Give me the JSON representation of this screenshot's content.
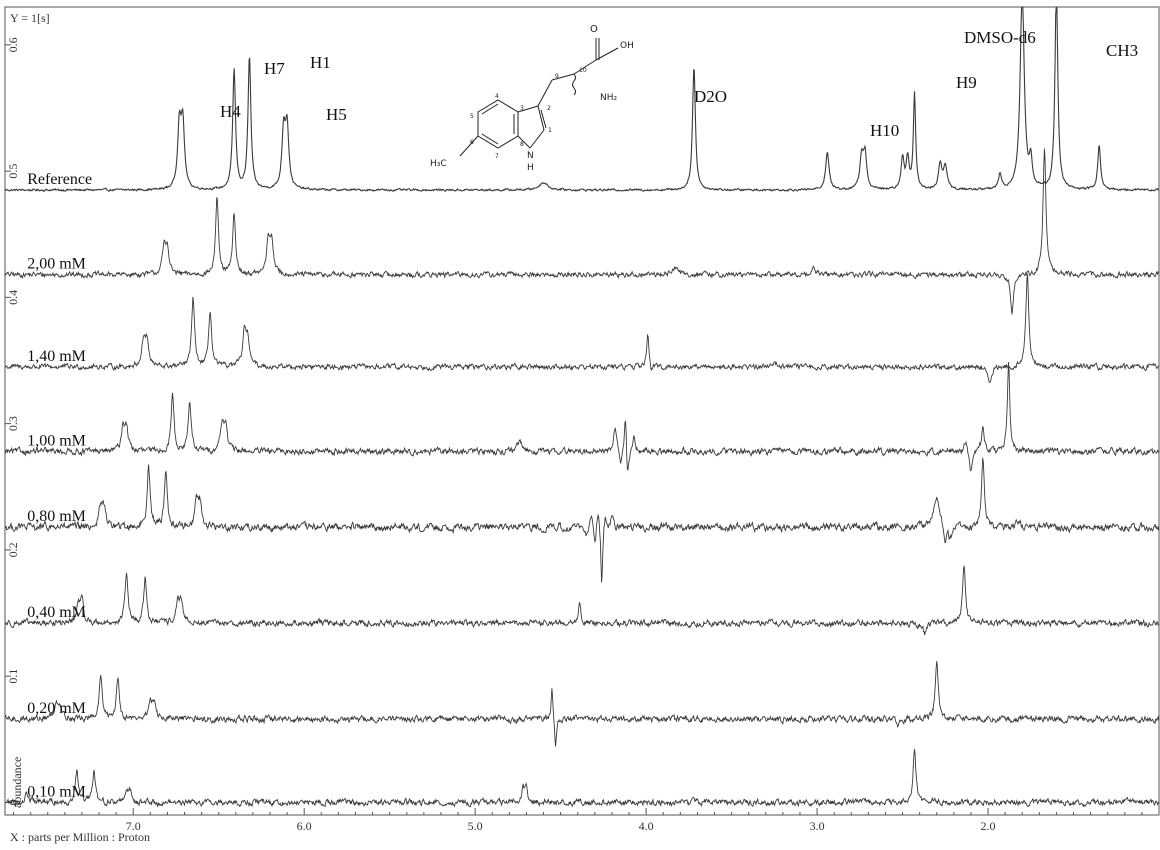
{
  "header": {
    "y_scale_label": "Y = 1[s]"
  },
  "axes": {
    "xlabel": "X : parts per Million : Proton",
    "ylabel": "abundance"
  },
  "chart_data": {
    "type": "line",
    "title": "",
    "xlabel": "X : parts per Million : Proton",
    "ylabel": "abundance",
    "xlim": [
      7.75,
      1.0
    ],
    "x_reversed": true,
    "ylim": [
      -0.01,
      0.63
    ],
    "xticks": [
      "7.0",
      "6.0",
      "5.0",
      "4.0",
      "3.0",
      "2.0"
    ],
    "yticks": [
      "0",
      "0.1",
      "0.2",
      "0.3",
      "0.4",
      "0.5",
      "0.6"
    ],
    "series": [
      {
        "name": "Reference",
        "baseline": 0.485,
        "noise": 0.0006,
        "peaks": [
          {
            "ppm": 6.73,
            "h": 0.05,
            "w": 0.012
          },
          {
            "ppm": 6.71,
            "h": 0.05,
            "w": 0.012
          },
          {
            "ppm": 6.41,
            "h": 0.095,
            "w": 0.01
          },
          {
            "ppm": 6.32,
            "h": 0.105,
            "w": 0.01
          },
          {
            "ppm": 6.12,
            "h": 0.045,
            "w": 0.012
          },
          {
            "ppm": 6.1,
            "h": 0.048,
            "w": 0.012
          },
          {
            "ppm": 4.6,
            "h": 0.006,
            "w": 0.03
          },
          {
            "ppm": 3.72,
            "h": 0.098,
            "w": 0.01
          },
          {
            "ppm": 2.94,
            "h": 0.03,
            "w": 0.012
          },
          {
            "ppm": 2.74,
            "h": 0.025,
            "w": 0.012
          },
          {
            "ppm": 2.72,
            "h": 0.027,
            "w": 0.012
          },
          {
            "ppm": 2.5,
            "h": 0.025,
            "w": 0.01
          },
          {
            "ppm": 2.47,
            "h": 0.025,
            "w": 0.01
          },
          {
            "ppm": 2.43,
            "h": 0.077,
            "w": 0.008
          },
          {
            "ppm": 2.28,
            "h": 0.02,
            "w": 0.012
          },
          {
            "ppm": 2.25,
            "h": 0.019,
            "w": 0.012
          },
          {
            "ppm": 1.93,
            "h": 0.012,
            "w": 0.01
          },
          {
            "ppm": 1.8,
            "h": 0.16,
            "w": 0.014
          },
          {
            "ppm": 1.75,
            "h": 0.02,
            "w": 0.01
          },
          {
            "ppm": 1.6,
            "h": 0.16,
            "w": 0.01
          },
          {
            "ppm": 1.35,
            "h": 0.035,
            "w": 0.01
          }
        ]
      },
      {
        "name": "2,00 mM",
        "baseline": 0.418,
        "noise": 0.0015,
        "peaks": [
          {
            "ppm": 6.82,
            "h": 0.02,
            "w": 0.012
          },
          {
            "ppm": 6.8,
            "h": 0.02,
            "w": 0.012
          },
          {
            "ppm": 6.51,
            "h": 0.06,
            "w": 0.01
          },
          {
            "ppm": 6.41,
            "h": 0.048,
            "w": 0.01
          },
          {
            "ppm": 6.21,
            "h": 0.025,
            "w": 0.012
          },
          {
            "ppm": 6.19,
            "h": 0.025,
            "w": 0.012
          },
          {
            "ppm": 3.83,
            "h": 0.006,
            "w": 0.02
          },
          {
            "ppm": 3.02,
            "h": 0.004,
            "w": 0.02
          },
          {
            "ppm": 1.86,
            "h": -0.03,
            "w": 0.01
          },
          {
            "ppm": 1.67,
            "h": 0.1,
            "w": 0.01
          }
        ]
      },
      {
        "name": "1,40 mM",
        "baseline": 0.345,
        "noise": 0.0015,
        "peaks": [
          {
            "ppm": 6.94,
            "h": 0.02,
            "w": 0.012
          },
          {
            "ppm": 6.92,
            "h": 0.02,
            "w": 0.012
          },
          {
            "ppm": 6.65,
            "h": 0.055,
            "w": 0.01
          },
          {
            "ppm": 6.55,
            "h": 0.045,
            "w": 0.01
          },
          {
            "ppm": 6.35,
            "h": 0.025,
            "w": 0.012
          },
          {
            "ppm": 6.33,
            "h": 0.022,
            "w": 0.012
          },
          {
            "ppm": 3.99,
            "h": 0.028,
            "w": 0.008
          },
          {
            "ppm": 3.97,
            "h": -0.006,
            "w": 0.008
          },
          {
            "ppm": 3.25,
            "h": 0.004,
            "w": 0.02
          },
          {
            "ppm": 1.99,
            "h": -0.015,
            "w": 0.012
          },
          {
            "ppm": 1.77,
            "h": 0.075,
            "w": 0.01
          }
        ]
      },
      {
        "name": "1,00 mM",
        "baseline": 0.278,
        "noise": 0.0018,
        "peaks": [
          {
            "ppm": 7.06,
            "h": 0.018,
            "w": 0.012
          },
          {
            "ppm": 7.04,
            "h": 0.018,
            "w": 0.012
          },
          {
            "ppm": 6.77,
            "h": 0.045,
            "w": 0.01
          },
          {
            "ppm": 6.67,
            "h": 0.04,
            "w": 0.01
          },
          {
            "ppm": 6.48,
            "h": 0.02,
            "w": 0.012
          },
          {
            "ppm": 6.46,
            "h": 0.02,
            "w": 0.012
          },
          {
            "ppm": 4.74,
            "h": 0.006,
            "w": 0.02
          },
          {
            "ppm": 4.18,
            "h": 0.02,
            "w": 0.01
          },
          {
            "ppm": 4.15,
            "h": -0.012,
            "w": 0.008
          },
          {
            "ppm": 4.12,
            "h": 0.035,
            "w": 0.008
          },
          {
            "ppm": 4.11,
            "h": -0.03,
            "w": 0.008
          },
          {
            "ppm": 4.07,
            "h": 0.01,
            "w": 0.01
          },
          {
            "ppm": 2.13,
            "h": 0.008,
            "w": 0.012
          },
          {
            "ppm": 2.1,
            "h": -0.018,
            "w": 0.01
          },
          {
            "ppm": 2.03,
            "h": 0.02,
            "w": 0.01
          },
          {
            "ppm": 1.88,
            "h": 0.07,
            "w": 0.008
          }
        ]
      },
      {
        "name": "0,80 mM",
        "baseline": 0.218,
        "noise": 0.0022,
        "peaks": [
          {
            "ppm": 7.19,
            "h": 0.015,
            "w": 0.012
          },
          {
            "ppm": 7.17,
            "h": 0.015,
            "w": 0.012
          },
          {
            "ppm": 6.91,
            "h": 0.05,
            "w": 0.01
          },
          {
            "ppm": 6.81,
            "h": 0.045,
            "w": 0.01
          },
          {
            "ppm": 6.63,
            "h": 0.02,
            "w": 0.012
          },
          {
            "ppm": 6.61,
            "h": 0.018,
            "w": 0.012
          },
          {
            "ppm": 4.35,
            "h": -0.01,
            "w": 0.01
          },
          {
            "ppm": 4.32,
            "h": 0.012,
            "w": 0.01
          },
          {
            "ppm": 4.3,
            "h": -0.015,
            "w": 0.008
          },
          {
            "ppm": 4.28,
            "h": 0.015,
            "w": 0.008
          },
          {
            "ppm": 4.26,
            "h": -0.045,
            "w": 0.006
          },
          {
            "ppm": 4.24,
            "h": 0.01,
            "w": 0.008
          },
          {
            "ppm": 4.2,
            "h": 0.006,
            "w": 0.01
          },
          {
            "ppm": 2.3,
            "h": 0.025,
            "w": 0.02
          },
          {
            "ppm": 2.25,
            "h": -0.012,
            "w": 0.012
          },
          {
            "ppm": 2.22,
            "h": -0.008,
            "w": 0.012
          },
          {
            "ppm": 2.03,
            "h": 0.055,
            "w": 0.01
          },
          {
            "ppm": 1.82,
            "h": 0.004,
            "w": 0.02
          }
        ]
      },
      {
        "name": "0,40 mM",
        "baseline": 0.142,
        "noise": 0.0018,
        "peaks": [
          {
            "ppm": 7.32,
            "h": 0.015,
            "w": 0.012
          },
          {
            "ppm": 7.3,
            "h": 0.015,
            "w": 0.012
          },
          {
            "ppm": 7.04,
            "h": 0.04,
            "w": 0.01
          },
          {
            "ppm": 6.93,
            "h": 0.036,
            "w": 0.01
          },
          {
            "ppm": 6.74,
            "h": 0.015,
            "w": 0.012
          },
          {
            "ppm": 6.72,
            "h": 0.015,
            "w": 0.012
          },
          {
            "ppm": 4.39,
            "h": 0.018,
            "w": 0.008
          },
          {
            "ppm": 2.37,
            "h": -0.008,
            "w": 0.012
          },
          {
            "ppm": 2.14,
            "h": 0.045,
            "w": 0.01
          }
        ]
      },
      {
        "name": "0,20 mM",
        "baseline": 0.066,
        "noise": 0.0018,
        "peaks": [
          {
            "ppm": 7.45,
            "h": 0.01,
            "w": 0.015
          },
          {
            "ppm": 7.43,
            "h": 0.01,
            "w": 0.015
          },
          {
            "ppm": 7.19,
            "h": 0.034,
            "w": 0.01
          },
          {
            "ppm": 7.09,
            "h": 0.034,
            "w": 0.01
          },
          {
            "ppm": 6.9,
            "h": 0.013,
            "w": 0.012
          },
          {
            "ppm": 6.88,
            "h": 0.012,
            "w": 0.012
          },
          {
            "ppm": 4.55,
            "h": 0.025,
            "w": 0.006
          },
          {
            "ppm": 4.53,
            "h": -0.025,
            "w": 0.006
          },
          {
            "ppm": 2.53,
            "h": -0.005,
            "w": 0.012
          },
          {
            "ppm": 2.3,
            "h": 0.047,
            "w": 0.01
          }
        ]
      },
      {
        "name": "0,10 mM",
        "baseline": 0.0,
        "noise": 0.0018,
        "peaks": [
          {
            "ppm": 7.62,
            "h": 0.006,
            "w": 0.015
          },
          {
            "ppm": 7.33,
            "h": 0.025,
            "w": 0.01
          },
          {
            "ppm": 7.23,
            "h": 0.024,
            "w": 0.01
          },
          {
            "ppm": 7.04,
            "h": 0.009,
            "w": 0.012
          },
          {
            "ppm": 7.02,
            "h": 0.008,
            "w": 0.012
          },
          {
            "ppm": 4.72,
            "h": 0.01,
            "w": 0.01
          },
          {
            "ppm": 4.7,
            "h": 0.012,
            "w": 0.01
          },
          {
            "ppm": 2.43,
            "h": 0.042,
            "w": 0.01
          }
        ]
      }
    ]
  },
  "annotations": [
    {
      "text": "H4"
    },
    {
      "text": "H7"
    },
    {
      "text": "H1"
    },
    {
      "text": "H5"
    },
    {
      "text": "D2O"
    },
    {
      "text": "H10"
    },
    {
      "text": "H9"
    },
    {
      "text": "DMSO-d6"
    },
    {
      "text": "CH3"
    }
  ],
  "molecule": {
    "labels": [
      "O",
      "OH",
      "10",
      "9",
      "NH₂",
      "4",
      "3",
      "2",
      "5",
      "6",
      "7",
      "8",
      "1",
      "H₃C",
      "N",
      "H"
    ]
  }
}
